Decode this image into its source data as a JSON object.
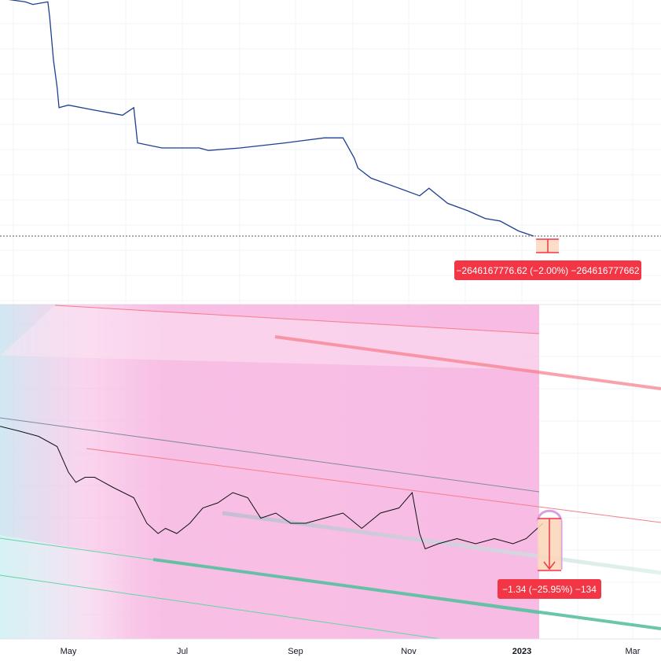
{
  "colors": {
    "upper_line": "#1e3f91",
    "lower_line": "#111111",
    "measure_red": "#f23645",
    "measure_fill": "#fbd5b9",
    "channel_red": "#f77c8a",
    "channel_green": "#5fd6a6",
    "regression_gray": "#7f8aa0",
    "band_pink": "#f7b8e2",
    "grid": "#f0f3fa",
    "axis_text": "#131722"
  },
  "x_axis": {
    "labels": [
      "May",
      "Jul",
      "Sep",
      "Nov",
      "2023",
      "Mar"
    ]
  },
  "upper_pane": {
    "measure_label": "−2646167776.62 (−2.00%) −264616777662"
  },
  "lower_pane": {
    "measure_label": "−1.34 (−25.95%) −134"
  },
  "chart_data": [
    {
      "type": "line",
      "series": [
        {
          "x": [
            "2022-03-01",
            "2022-03-20",
            "2022-04-08",
            "2022-04-12",
            "2022-04-20",
            "2022-04-21",
            "2022-04-23",
            "2022-04-25",
            "2022-04-26",
            "2022-05-01",
            "2022-05-15",
            "2022-05-30",
            "2022-06-05",
            "2022-06-07",
            "2022-06-20",
            "2022-07-10",
            "2022-07-15",
            "2022-08-01",
            "2022-08-25",
            "2022-09-15",
            "2022-09-25",
            "2022-10-01",
            "2022-10-03",
            "2022-10-10",
            "2022-10-25",
            "2022-11-05",
            "2022-11-10",
            "2022-11-20",
            "2022-12-01",
            "2022-12-10",
            "2022-12-18",
            "2022-12-28",
            "2023-01-05"
          ],
          "y": [
            16.0,
            16.6,
            16.4,
            16.3,
            16.4,
            15.8,
            14.1,
            13.0,
            12.2,
            12.3,
            12.1,
            11.9,
            12.2,
            10.8,
            10.6,
            10.6,
            10.5,
            10.6,
            10.8,
            11.0,
            11.0,
            10.2,
            9.8,
            9.4,
            9.0,
            8.7,
            9.0,
            8.4,
            8.1,
            7.8,
            7.7,
            7.3,
            7.1
          ]
        }
      ],
      "markers": [
        {
          "label": "−2646167776.62 (−2.00%) −264616777662"
        }
      ]
    },
    {
      "type": "line",
      "series": [
        {
          "x": [
            "2022-03-01",
            "2022-03-10",
            "2022-03-18",
            "2022-03-25",
            "2022-04-05",
            "2022-04-15",
            "2022-04-25",
            "2022-05-01",
            "2022-05-05",
            "2022-05-10",
            "2022-05-15",
            "2022-05-25",
            "2022-06-05",
            "2022-06-12",
            "2022-06-18",
            "2022-06-22",
            "2022-06-28",
            "2022-07-05",
            "2022-07-12",
            "2022-07-20",
            "2022-07-28",
            "2022-08-05",
            "2022-08-12",
            "2022-08-20",
            "2022-08-28",
            "2022-09-05",
            "2022-09-15",
            "2022-09-25",
            "2022-10-05",
            "2022-10-15",
            "2022-10-25",
            "2022-11-01",
            "2022-11-05",
            "2022-11-08",
            "2022-11-15",
            "2022-11-25",
            "2022-12-05",
            "2022-12-15",
            "2022-12-25",
            "2023-01-01",
            "2023-01-10"
          ],
          "y": [
            5.25,
            5.35,
            5.05,
            5.0,
            4.95,
            4.9,
            4.8,
            4.55,
            4.45,
            4.5,
            4.5,
            4.4,
            4.3,
            4.05,
            3.95,
            4.0,
            3.95,
            4.05,
            4.2,
            4.25,
            4.35,
            4.3,
            4.1,
            4.15,
            4.05,
            4.05,
            4.1,
            4.15,
            4.0,
            4.15,
            4.2,
            4.35,
            3.95,
            3.8,
            3.85,
            3.9,
            3.85,
            3.9,
            3.85,
            3.9,
            4.05
          ]
        }
      ],
      "markers": [
        {
          "label": "−1.34 (−25.95%) −134"
        }
      ]
    }
  ]
}
